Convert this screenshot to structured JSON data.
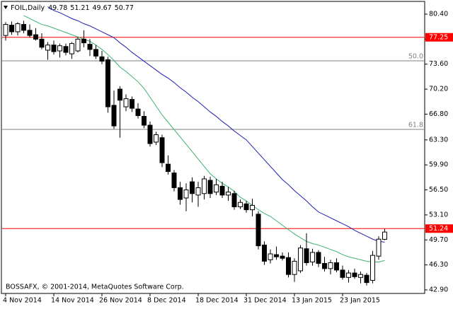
{
  "chart_data": {
    "type": "candlestick",
    "symbol": "FOIL,Daily",
    "footer": "BOSSAFX, © 2001-2014, MetaQuotes Software Corp.",
    "categories": [
      "4 Nov 2014",
      null,
      null,
      null,
      null,
      null,
      null,
      null,
      "14 Nov 2014",
      null,
      null,
      null,
      null,
      null,
      null,
      null,
      "26 Nov 2014",
      null,
      null,
      null,
      null,
      null,
      null,
      null,
      "8 Dec 2014",
      null,
      null,
      null,
      null,
      null,
      null,
      null,
      "18 Dec 2014",
      null,
      null,
      null,
      null,
      null,
      null,
      null,
      "31 Dec 2014",
      null,
      null,
      null,
      null,
      null,
      null,
      null,
      "13 Jan 2015",
      null,
      null,
      null,
      null,
      null,
      null,
      null,
      "23 Jan 2015",
      null,
      null,
      null,
      null,
      null,
      null,
      null
    ],
    "open": [
      77.5,
      78.9,
      78.0,
      79.0,
      78.2,
      77.6,
      77.0,
      75.5,
      76.2,
      75.4,
      76.0,
      75.0,
      75.4,
      77.0,
      76.3,
      75.6,
      74.6,
      74.2,
      68.0,
      70.2,
      67.8,
      68.8,
      67.5,
      66.5,
      65.3,
      63.0,
      63.6,
      60.0,
      58.8,
      56.8,
      55.4,
      57.6,
      55.8,
      56.0,
      57.8,
      56.2,
      57.0,
      55.8,
      56.0,
      54.2,
      54.6,
      53.8,
      53.2,
      49.0,
      47.0,
      47.7,
      47.5,
      47.3,
      45.0,
      45.5,
      48.5,
      46.7,
      48.0,
      46.5,
      45.8,
      46.6,
      45.6,
      44.6,
      45.2,
      44.6,
      44.9,
      44.2,
      47.5,
      49.78
    ],
    "high": [
      79.3,
      79.4,
      79.3,
      79.5,
      79.0,
      78.5,
      77.8,
      76.6,
      76.8,
      76.4,
      76.4,
      76.6,
      77.3,
      78.2,
      77.0,
      76.2,
      75.4,
      74.6,
      70.0,
      70.6,
      69.5,
      69.2,
      68.3,
      67.2,
      65.8,
      64.4,
      64.0,
      61.2,
      59.2,
      57.6,
      57.4,
      58.2,
      57.6,
      58.4,
      58.3,
      58.0,
      57.6,
      56.9,
      56.4,
      55.2,
      55.0,
      55.3,
      53.6,
      49.5,
      48.4,
      48.8,
      48.0,
      48.0,
      47.2,
      49.0,
      50.6,
      48.5,
      48.3,
      47.4,
      47.0,
      47.2,
      46.2,
      45.6,
      45.8,
      45.4,
      45.2,
      48.2,
      50.2,
      51.21
    ],
    "low": [
      76.8,
      77.6,
      77.5,
      77.8,
      77.2,
      76.8,
      75.6,
      74.2,
      74.9,
      74.5,
      74.8,
      74.3,
      75.2,
      75.9,
      74.7,
      74.3,
      73.6,
      67.0,
      64.8,
      63.6,
      67.2,
      67.1,
      66.2,
      64.9,
      62.4,
      62.6,
      59.6,
      58.6,
      56.3,
      54.5,
      53.6,
      54.8,
      54.2,
      55.2,
      55.4,
      55.8,
      55.4,
      55.0,
      53.8,
      53.9,
      53.4,
      52.9,
      48.4,
      46.3,
      46.5,
      47.0,
      46.9,
      44.6,
      44.0,
      45.2,
      46.2,
      46.2,
      46.0,
      45.4,
      45.0,
      45.3,
      44.3,
      43.9,
      44.4,
      43.8,
      43.5,
      43.8,
      47.0,
      49.67
    ],
    "close": [
      79.0,
      78.0,
      79.1,
      78.2,
      77.5,
      77.0,
      75.9,
      76.2,
      75.3,
      76.1,
      75.2,
      76.4,
      77.0,
      76.5,
      75.6,
      74.7,
      74.0,
      67.8,
      65.2,
      68.7,
      68.9,
      67.6,
      66.6,
      65.3,
      62.8,
      64.0,
      60.2,
      59.0,
      56.8,
      55.2,
      56.5,
      56.0,
      56.8,
      58.0,
      56.0,
      57.2,
      55.8,
      56.2,
      54.2,
      54.8,
      53.8,
      54.4,
      48.9,
      46.8,
      47.8,
      47.4,
      47.2,
      45.0,
      46.8,
      48.6,
      46.6,
      48.0,
      46.5,
      45.8,
      46.6,
      45.6,
      44.6,
      45.2,
      44.7,
      45.0,
      43.9,
      47.6,
      49.8,
      50.77
    ],
    "overlays": [
      {
        "color": "#2020b0",
        "values": [
          null,
          null,
          null,
          null,
          null,
          null,
          null,
          81.4,
          80.9,
          80.6,
          80.2,
          79.8,
          79.5,
          79.1,
          78.8,
          78.4,
          78.0,
          77.6,
          77.2,
          76.5,
          75.9,
          75.2,
          74.6,
          74.0,
          73.4,
          72.8,
          72.2,
          71.7,
          71.1,
          70.4,
          69.8,
          69.1,
          68.5,
          67.8,
          67.1,
          66.5,
          65.8,
          65.2,
          64.5,
          63.9,
          63.3,
          62.4,
          61.5,
          60.6,
          59.7,
          58.8,
          57.9,
          57.2,
          56.4,
          55.7,
          55.0,
          54.2,
          53.5,
          53.1,
          52.7,
          52.3,
          51.9,
          51.5,
          51.0,
          50.6,
          50.2,
          49.8,
          49.5,
          49.4
        ]
      },
      {
        "color": "#3cb371",
        "values": [
          null,
          null,
          null,
          80.2,
          79.8,
          79.4,
          79.0,
          78.8,
          78.5,
          78.2,
          77.9,
          77.6,
          77.3,
          77.0,
          76.7,
          76.2,
          75.6,
          74.9,
          74.1,
          73.2,
          72.6,
          71.9,
          71.2,
          70.3,
          69.1,
          67.9,
          66.7,
          65.7,
          64.7,
          63.7,
          62.7,
          61.7,
          60.7,
          59.7,
          58.7,
          58.0,
          57.4,
          56.9,
          56.3,
          55.5,
          55.0,
          54.4,
          53.8,
          53.3,
          52.9,
          52.3,
          51.7,
          51.1,
          50.5,
          50.0,
          49.5,
          49.2,
          49.0,
          48.7,
          48.4,
          48.1,
          47.7,
          47.4,
          47.2,
          47.0,
          46.8,
          46.7,
          46.7,
          46.9
        ]
      }
    ],
    "hlines": [
      {
        "value": 77.25,
        "color": "#ff0000"
      },
      {
        "value": 51.24,
        "color": "#ff0000"
      }
    ],
    "fibo": [
      {
        "value": 74.05,
        "label": "50.0",
        "color": "#808080"
      },
      {
        "value": 64.73,
        "label": "61.8",
        "color": "#808080"
      }
    ],
    "ylim": [
      42.42,
      82.13
    ],
    "yticks": [
      {
        "value": 80.4,
        "label": "80.40"
      },
      {
        "value": 77,
        "label": "77.00"
      },
      {
        "value": 73.6,
        "label": "73.60"
      },
      {
        "value": 70.2,
        "label": "70.20"
      },
      {
        "value": 66.8,
        "label": "66.80"
      },
      {
        "value": 63.3,
        "label": "63.30"
      },
      {
        "value": 59.9,
        "label": "59.90"
      },
      {
        "value": 56.5,
        "label": "56.50"
      },
      {
        "value": 53.1,
        "label": "53.10"
      },
      {
        "value": 49.7,
        "label": "49.70"
      },
      {
        "value": 46.3,
        "label": "46.30"
      },
      {
        "value": 42.9,
        "label": "42.90"
      }
    ]
  }
}
